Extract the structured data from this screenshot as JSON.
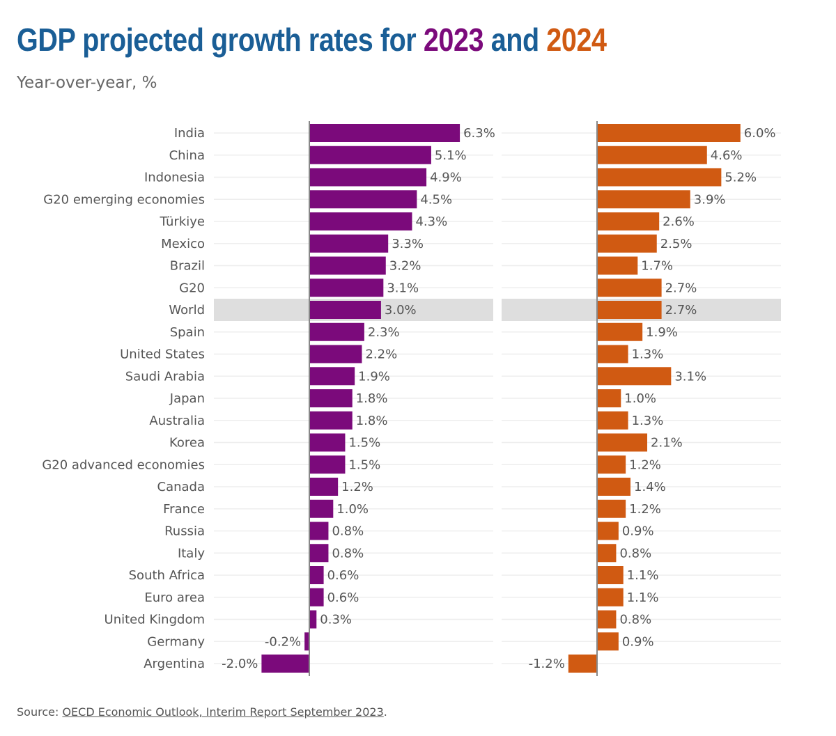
{
  "header": {
    "title_prefix": "GDP projected growth rates for ",
    "title_year1": "2023",
    "title_mid": " and ",
    "title_year2": "2024",
    "subtitle": "Year-over-year, %"
  },
  "footer": {
    "source_prefix": "Source: ",
    "source_link": "OECD Economic Outlook, Interim Report September 2023",
    "source_suffix": "."
  },
  "colors": {
    "title": "#1a5e96",
    "series_2023": "#7b0a7b",
    "series_2024": "#d05a12",
    "highlight_row": "#dedede",
    "gridline": "#eeeeee",
    "axis": "#888888"
  },
  "chart_data": {
    "type": "bar",
    "orientation": "horizontal",
    "title": "GDP projected growth rates for 2023 and 2024",
    "subtitle": "Year-over-year, %",
    "xlabel": "",
    "ylabel": "",
    "value_suffix": "%",
    "highlighted_category": "World",
    "categories": [
      "India",
      "China",
      "Indonesia",
      "G20 emerging economies",
      "Türkiye",
      "Mexico",
      "Brazil",
      "G20",
      "World",
      "Spain",
      "United States",
      "Saudi Arabia",
      "Japan",
      "Australia",
      "Korea",
      "G20 advanced economies",
      "Canada",
      "France",
      "Russia",
      "Italy",
      "South Africa",
      "Euro area",
      "United Kingdom",
      "Germany",
      "Argentina"
    ],
    "series": [
      {
        "name": "2023",
        "values": [
          6.3,
          5.1,
          4.9,
          4.5,
          4.3,
          3.3,
          3.2,
          3.1,
          3.0,
          2.3,
          2.2,
          1.9,
          1.8,
          1.8,
          1.5,
          1.5,
          1.2,
          1.0,
          0.8,
          0.8,
          0.6,
          0.6,
          0.3,
          -0.2,
          -2.0
        ]
      },
      {
        "name": "2024",
        "values": [
          6.0,
          4.6,
          5.2,
          3.9,
          2.6,
          2.5,
          1.7,
          2.7,
          2.7,
          1.9,
          1.3,
          3.1,
          1.0,
          1.3,
          2.1,
          1.2,
          1.4,
          1.2,
          0.9,
          0.8,
          1.1,
          1.1,
          0.8,
          0.9,
          -1.2
        ]
      }
    ],
    "grid": true,
    "legend": "none (years encoded by title colors)"
  }
}
